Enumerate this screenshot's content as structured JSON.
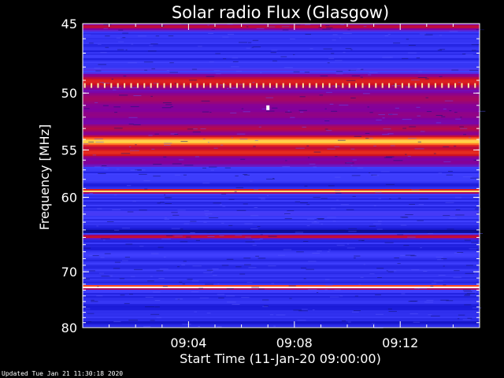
{
  "footer": {
    "updated": "Updated Tue Jan 21 11:30:18 2020"
  },
  "chart_data": {
    "type": "heatmap",
    "title": "Solar radio Flux (Glasgow)",
    "xlabel": "Start Time (11-Jan-20 09:00:00)",
    "ylabel": "Frequency [MHz]",
    "x_unit": "minutes since 09:00:00",
    "xlim": [
      0,
      15.0
    ],
    "ylim": [
      45,
      80
    ],
    "y_scale": "reciprocal (frequency decreases upward toward 45 MHz at top)",
    "x_ticks": [
      {
        "value": 4,
        "label": "09:04"
      },
      {
        "value": 8,
        "label": "09:08"
      },
      {
        "value": 12,
        "label": "09:12"
      }
    ],
    "y_ticks": [
      {
        "value": 45,
        "label": "45"
      },
      {
        "value": 50,
        "label": "50"
      },
      {
        "value": 55,
        "label": "55"
      },
      {
        "value": 60,
        "label": "60"
      },
      {
        "value": 70,
        "label": "70"
      },
      {
        "value": 80,
        "label": "80"
      }
    ],
    "colorscale": [
      "#000050",
      "#1a1ad8",
      "#4040ff",
      "#8000a0",
      "#d01020",
      "#ff5020",
      "#ffd040",
      "#ffffff"
    ],
    "background_intensity": 0.22,
    "bands": [
      {
        "freq": 45.2,
        "intensity": 0.55,
        "width": 0.25
      },
      {
        "freq": 49.1,
        "intensity": 0.62,
        "width": 0.6
      },
      {
        "freq": 50.5,
        "intensity": 0.5,
        "width": 0.9
      },
      {
        "freq": 51.8,
        "intensity": 0.46,
        "width": 0.9
      },
      {
        "freq": 53.0,
        "intensity": 0.52,
        "width": 0.5
      },
      {
        "freq": 54.2,
        "intensity": 0.88,
        "width": 0.55
      },
      {
        "freq": 55.3,
        "intensity": 0.66,
        "width": 0.6
      },
      {
        "freq": 56.2,
        "intensity": 0.44,
        "width": 0.6
      },
      {
        "freq": 59.3,
        "intensity": 0.9,
        "width": 0.22
      },
      {
        "freq": 62.0,
        "intensity": 0.3,
        "width": 0.5
      },
      {
        "freq": 64.2,
        "intensity": 0.05,
        "width": 0.3
      },
      {
        "freq": 64.9,
        "intensity": 0.58,
        "width": 0.3
      },
      {
        "freq": 66.5,
        "intensity": 0.15,
        "width": 0.4
      },
      {
        "freq": 72.5,
        "intensity": 1.0,
        "width": 0.3
      },
      {
        "freq": 76.0,
        "intensity": 0.14,
        "width": 0.6
      },
      {
        "freq": 79.0,
        "intensity": 0.12,
        "width": 0.4
      }
    ],
    "pulsed_line": {
      "freq": 49.4,
      "intensity": 0.93,
      "period_min": 0.25
    },
    "spike": {
      "time_min": 7.0,
      "freq": 51.2,
      "intensity": 1.0
    }
  }
}
